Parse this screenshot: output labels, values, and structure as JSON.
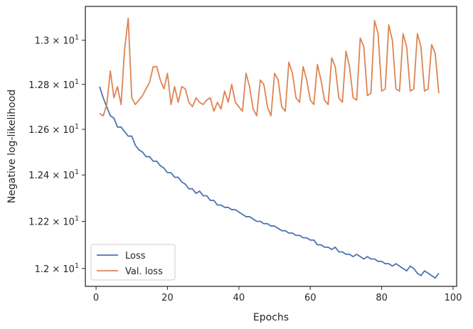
{
  "chart_data": {
    "type": "line",
    "title": "",
    "xlabel": "Epochs",
    "ylabel": "Negative log-likelihood",
    "xlim": [
      -3,
      101
    ],
    "ylim": [
      11.925,
      13.155
    ],
    "y_scale": "log",
    "grid": false,
    "legend_position": "bottom-left",
    "x_ticks": [
      {
        "value": 0,
        "label": "0"
      },
      {
        "value": 20,
        "label": "20"
      },
      {
        "value": 40,
        "label": "40"
      },
      {
        "value": 60,
        "label": "60"
      },
      {
        "value": 80,
        "label": "80"
      },
      {
        "value": 100,
        "label": "100"
      }
    ],
    "y_ticks": [
      {
        "value": 12.0,
        "base": "1.2",
        "exp": "1"
      },
      {
        "value": 12.2,
        "base": "1.22",
        "exp": "1"
      },
      {
        "value": 12.4,
        "base": "1.24",
        "exp": "1"
      },
      {
        "value": 12.6,
        "base": "1.26",
        "exp": "1"
      },
      {
        "value": 12.8,
        "base": "1.28",
        "exp": "1"
      },
      {
        "value": 13.0,
        "base": "1.3",
        "exp": "1"
      }
    ],
    "series": [
      {
        "name": "Loss",
        "color": "#4c72b0",
        "x": [
          1,
          2,
          3,
          4,
          5,
          6,
          7,
          8,
          9,
          10,
          11,
          12,
          13,
          14,
          15,
          16,
          17,
          18,
          19,
          20,
          21,
          22,
          23,
          24,
          25,
          26,
          27,
          28,
          29,
          30,
          31,
          32,
          33,
          34,
          35,
          36,
          37,
          38,
          39,
          40,
          41,
          42,
          43,
          44,
          45,
          46,
          47,
          48,
          49,
          50,
          51,
          52,
          53,
          54,
          55,
          56,
          57,
          58,
          59,
          60,
          61,
          62,
          63,
          64,
          65,
          66,
          67,
          68,
          69,
          70,
          71,
          72,
          73,
          74,
          75,
          76,
          77,
          78,
          79,
          80,
          81,
          82,
          83,
          84,
          85,
          86,
          87,
          88,
          89,
          90,
          91,
          92,
          93,
          94,
          95,
          96
        ],
        "y": [
          12.79,
          12.74,
          12.7,
          12.66,
          12.65,
          12.61,
          12.61,
          12.59,
          12.57,
          12.57,
          12.53,
          12.51,
          12.5,
          12.48,
          12.48,
          12.46,
          12.46,
          12.44,
          12.43,
          12.41,
          12.41,
          12.39,
          12.39,
          12.37,
          12.36,
          12.34,
          12.34,
          12.32,
          12.33,
          12.31,
          12.31,
          12.29,
          12.29,
          12.27,
          12.27,
          12.26,
          12.26,
          12.25,
          12.25,
          12.24,
          12.23,
          12.22,
          12.22,
          12.21,
          12.2,
          12.2,
          12.19,
          12.19,
          12.18,
          12.18,
          12.17,
          12.16,
          12.16,
          12.15,
          12.15,
          12.14,
          12.14,
          12.13,
          12.13,
          12.12,
          12.12,
          12.1,
          12.1,
          12.09,
          12.09,
          12.08,
          12.09,
          12.07,
          12.07,
          12.06,
          12.06,
          12.05,
          12.06,
          12.05,
          12.04,
          12.05,
          12.04,
          12.04,
          12.03,
          12.03,
          12.02,
          12.02,
          12.01,
          12.02,
          12.01,
          12.0,
          11.99,
          12.01,
          12.0,
          11.98,
          11.97,
          11.99,
          11.98,
          11.97,
          11.96,
          11.98
        ]
      },
      {
        "name": "Val. loss",
        "color": "#dd8452",
        "x": [
          1,
          2,
          3,
          4,
          5,
          6,
          7,
          8,
          9,
          10,
          11,
          12,
          13,
          14,
          15,
          16,
          17,
          18,
          19,
          20,
          21,
          22,
          23,
          24,
          25,
          26,
          27,
          28,
          29,
          30,
          31,
          32,
          33,
          34,
          35,
          36,
          37,
          38,
          39,
          40,
          41,
          42,
          43,
          44,
          45,
          46,
          47,
          48,
          49,
          50,
          51,
          52,
          53,
          54,
          55,
          56,
          57,
          58,
          59,
          60,
          61,
          62,
          63,
          64,
          65,
          66,
          67,
          68,
          69,
          70,
          71,
          72,
          73,
          74,
          75,
          76,
          77,
          78,
          79,
          80,
          81,
          82,
          83,
          84,
          85,
          86,
          87,
          88,
          89,
          90,
          91,
          92,
          93,
          94,
          95,
          96
        ],
        "y": [
          12.67,
          12.66,
          12.71,
          12.86,
          12.74,
          12.79,
          12.71,
          12.96,
          13.1,
          12.74,
          12.71,
          12.73,
          12.75,
          12.78,
          12.81,
          12.88,
          12.88,
          12.82,
          12.78,
          12.85,
          12.71,
          12.79,
          12.72,
          12.79,
          12.78,
          12.72,
          12.7,
          12.74,
          12.72,
          12.71,
          12.73,
          12.74,
          12.68,
          12.72,
          12.69,
          12.77,
          12.72,
          12.8,
          12.72,
          12.7,
          12.68,
          12.85,
          12.79,
          12.69,
          12.66,
          12.82,
          12.8,
          12.7,
          12.66,
          12.85,
          12.82,
          12.7,
          12.68,
          12.9,
          12.85,
          12.74,
          12.72,
          12.88,
          12.82,
          12.73,
          12.71,
          12.89,
          12.82,
          12.73,
          12.71,
          12.92,
          12.88,
          12.74,
          12.72,
          12.95,
          12.88,
          12.74,
          12.73,
          13.01,
          12.97,
          12.75,
          12.76,
          13.09,
          13.03,
          12.77,
          12.78,
          13.07,
          13.0,
          12.78,
          12.77,
          13.03,
          12.97,
          12.77,
          12.78,
          13.03,
          12.97,
          12.77,
          12.78,
          12.98,
          12.94,
          12.76
        ]
      }
    ]
  }
}
